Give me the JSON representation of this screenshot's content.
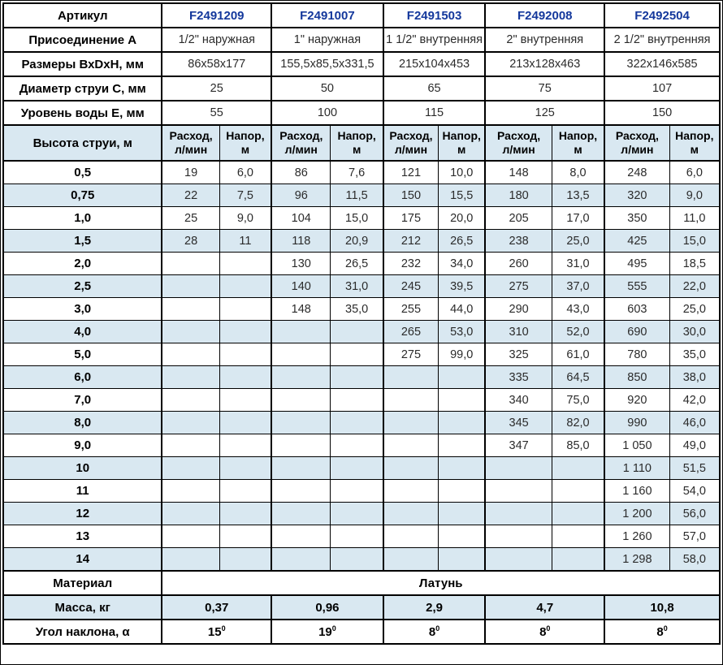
{
  "colors": {
    "accent_blue": "#14389c",
    "row_alt_bg": "#d9e8f1",
    "border": "#000000"
  },
  "table": {
    "info_rows": [
      {
        "label": "Артикул",
        "values": [
          "F2491209",
          "F2491007",
          "F2491503",
          "F2492008",
          "F2492504"
        ]
      },
      {
        "label": "Присоединение А",
        "values": [
          "1/2\" наружная",
          "1\" наружная",
          "1 1/2\" внутренняя",
          "2\" внутренняя",
          "2 1/2\" внутренняя"
        ]
      },
      {
        "label": "Размеры ВхDхН, мм",
        "values": [
          "86x58x177",
          "155,5x85,5x331,5",
          "215x104x453",
          "213x128x463",
          "322x146x585"
        ]
      },
      {
        "label": "Диаметр струи С, мм",
        "values": [
          "25",
          "50",
          "65",
          "75",
          "107"
        ]
      },
      {
        "label": "Уровень воды Е, мм",
        "values": [
          "55",
          "100",
          "115",
          "125",
          "150"
        ]
      }
    ],
    "jet_header": {
      "label": "Высота струи, м",
      "flow_line1": "Расход,",
      "flow_line2": "л/мин",
      "head_line1": "Напор,",
      "head_line2": "м"
    },
    "jet_rows": [
      {
        "height": "0,5",
        "cells": [
          "19",
          "6,0",
          "86",
          "7,6",
          "121",
          "10,0",
          "148",
          "8,0",
          "248",
          "6,0"
        ]
      },
      {
        "height": "0,75",
        "cells": [
          "22",
          "7,5",
          "96",
          "11,5",
          "150",
          "15,5",
          "180",
          "13,5",
          "320",
          "9,0"
        ]
      },
      {
        "height": "1,0",
        "cells": [
          "25",
          "9,0",
          "104",
          "15,0",
          "175",
          "20,0",
          "205",
          "17,0",
          "350",
          "11,0"
        ]
      },
      {
        "height": "1,5",
        "cells": [
          "28",
          "11",
          "118",
          "20,9",
          "212",
          "26,5",
          "238",
          "25,0",
          "425",
          "15,0"
        ]
      },
      {
        "height": "2,0",
        "cells": [
          "",
          "",
          "130",
          "26,5",
          "232",
          "34,0",
          "260",
          "31,0",
          "495",
          "18,5"
        ]
      },
      {
        "height": "2,5",
        "cells": [
          "",
          "",
          "140",
          "31,0",
          "245",
          "39,5",
          "275",
          "37,0",
          "555",
          "22,0"
        ]
      },
      {
        "height": "3,0",
        "cells": [
          "",
          "",
          "148",
          "35,0",
          "255",
          "44,0",
          "290",
          "43,0",
          "603",
          "25,0"
        ]
      },
      {
        "height": "4,0",
        "cells": [
          "",
          "",
          "",
          "",
          "265",
          "53,0",
          "310",
          "52,0",
          "690",
          "30,0"
        ]
      },
      {
        "height": "5,0",
        "cells": [
          "",
          "",
          "",
          "",
          "275",
          "99,0",
          "325",
          "61,0",
          "780",
          "35,0"
        ]
      },
      {
        "height": "6,0",
        "cells": [
          "",
          "",
          "",
          "",
          "",
          "",
          "335",
          "64,5",
          "850",
          "38,0"
        ]
      },
      {
        "height": "7,0",
        "cells": [
          "",
          "",
          "",
          "",
          "",
          "",
          "340",
          "75,0",
          "920",
          "42,0"
        ]
      },
      {
        "height": "8,0",
        "cells": [
          "",
          "",
          "",
          "",
          "",
          "",
          "345",
          "82,0",
          "990",
          "46,0"
        ]
      },
      {
        "height": "9,0",
        "cells": [
          "",
          "",
          "",
          "",
          "",
          "",
          "347",
          "85,0",
          "1 050",
          "49,0"
        ]
      },
      {
        "height": "10",
        "cells": [
          "",
          "",
          "",
          "",
          "",
          "",
          "",
          "",
          "1 110",
          "51,5"
        ]
      },
      {
        "height": "11",
        "cells": [
          "",
          "",
          "",
          "",
          "",
          "",
          "",
          "",
          "1 160",
          "54,0"
        ]
      },
      {
        "height": "12",
        "cells": [
          "",
          "",
          "",
          "",
          "",
          "",
          "",
          "",
          "1 200",
          "56,0"
        ]
      },
      {
        "height": "13",
        "cells": [
          "",
          "",
          "",
          "",
          "",
          "",
          "",
          "",
          "1 260",
          "57,0"
        ]
      },
      {
        "height": "14",
        "cells": [
          "",
          "",
          "",
          "",
          "",
          "",
          "",
          "",
          "1 298",
          "58,0"
        ]
      }
    ],
    "material_label": "Материал",
    "material_value": "Латунь",
    "mass_label": "Масса, кг",
    "mass_values": [
      "0,37",
      "0,96",
      "2,9",
      "4,7",
      "10,8"
    ],
    "angle_label": "Угол наклона, α",
    "angle_values": [
      "15",
      "19",
      "8",
      "8",
      "8"
    ],
    "angle_sup": "0"
  }
}
